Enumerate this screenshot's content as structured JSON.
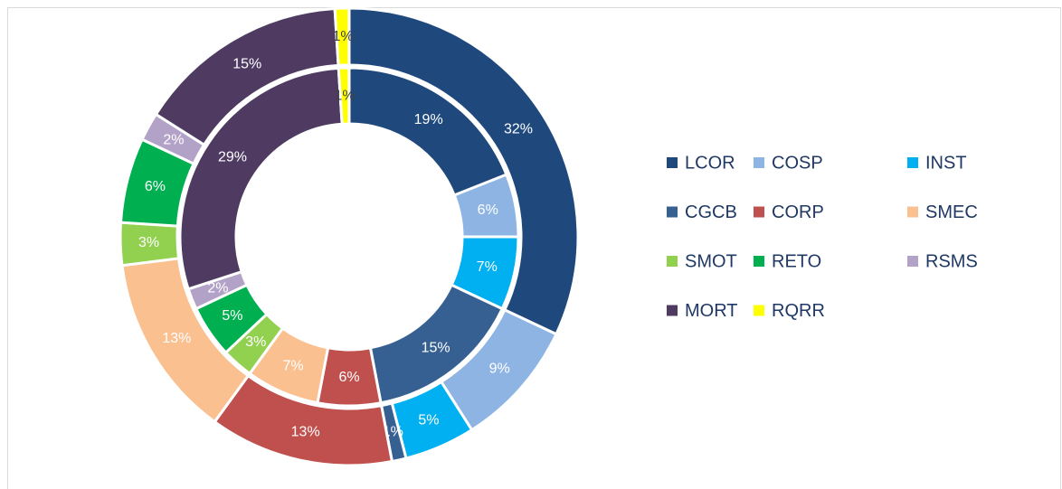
{
  "chart_data": {
    "type": "donut",
    "categories": [
      "LCOR",
      "COSP",
      "INST",
      "CGCB",
      "CORP",
      "SMEC",
      "SMOT",
      "RETO",
      "RSMS",
      "MORT",
      "RQRR"
    ],
    "colors": [
      "#1f497d",
      "#8eb4e3",
      "#00b0f0",
      "#376092",
      "#c0504d",
      "#fac090",
      "#92d050",
      "#00b050",
      "#b3a2c7",
      "#4f3b62",
      "#ffff00"
    ],
    "series": [
      {
        "values": [
          32,
          9,
          5,
          1,
          13,
          13,
          3,
          6,
          2,
          15,
          1
        ],
        "value_labels": [
          "32%",
          "9%",
          "5%",
          "1%",
          "13%",
          "13%",
          "3%",
          "6%",
          "2%",
          "15%",
          "1%"
        ]
      },
      {
        "values": [
          19,
          6,
          7,
          15,
          6,
          7,
          3,
          5,
          2,
          29,
          1
        ],
        "value_labels": [
          "19%",
          "6%",
          "7%",
          "15%",
          "6%",
          "7%",
          "3%",
          "5%",
          "2%",
          "29%",
          "1%"
        ]
      }
    ],
    "legend": "right"
  }
}
